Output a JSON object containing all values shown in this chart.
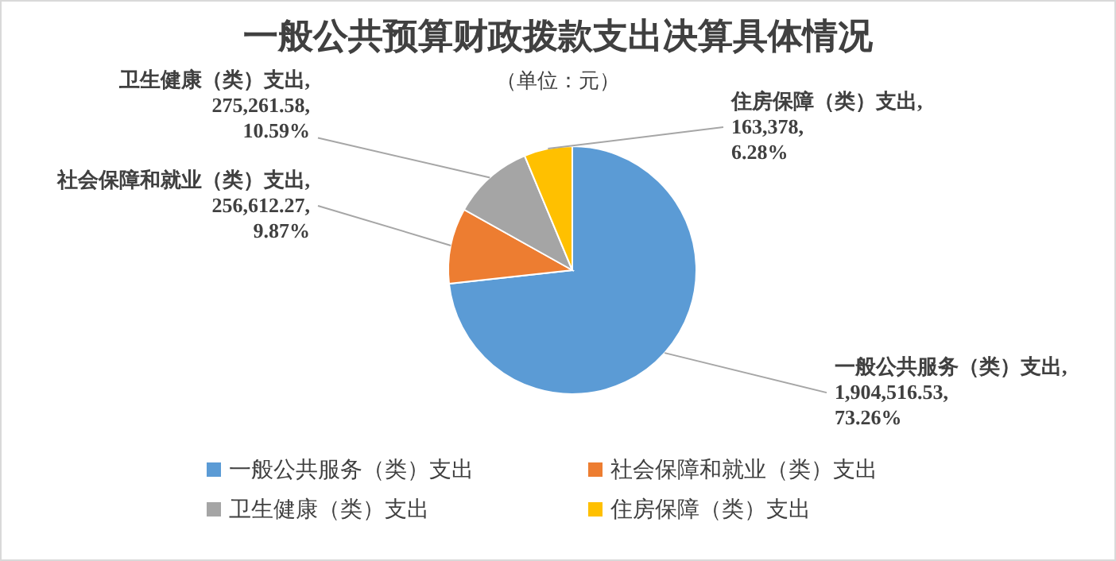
{
  "chart_data": {
    "type": "pie",
    "title": "一般公共预算财政拨款支出决算具体情况",
    "subtitle": "（单位：元）",
    "categories": [
      "一般公共服务（类）支出",
      "社会保障和就业（类）支出",
      "卫生健康（类）支出",
      "住房保障（类）支出"
    ],
    "values": [
      1904516.53,
      256612.27,
      275261.58,
      163378
    ],
    "colors": [
      "#5b9bd5",
      "#ed7d31",
      "#a5a5a5",
      "#ffc000"
    ],
    "value_labels": [
      ", 1,904,516.53, 73.26%",
      ", 256,612.27, 9.87%",
      ", 275,261.58, 10.59%",
      ", 163,378, 6.28%"
    ],
    "legend": "bottom"
  }
}
